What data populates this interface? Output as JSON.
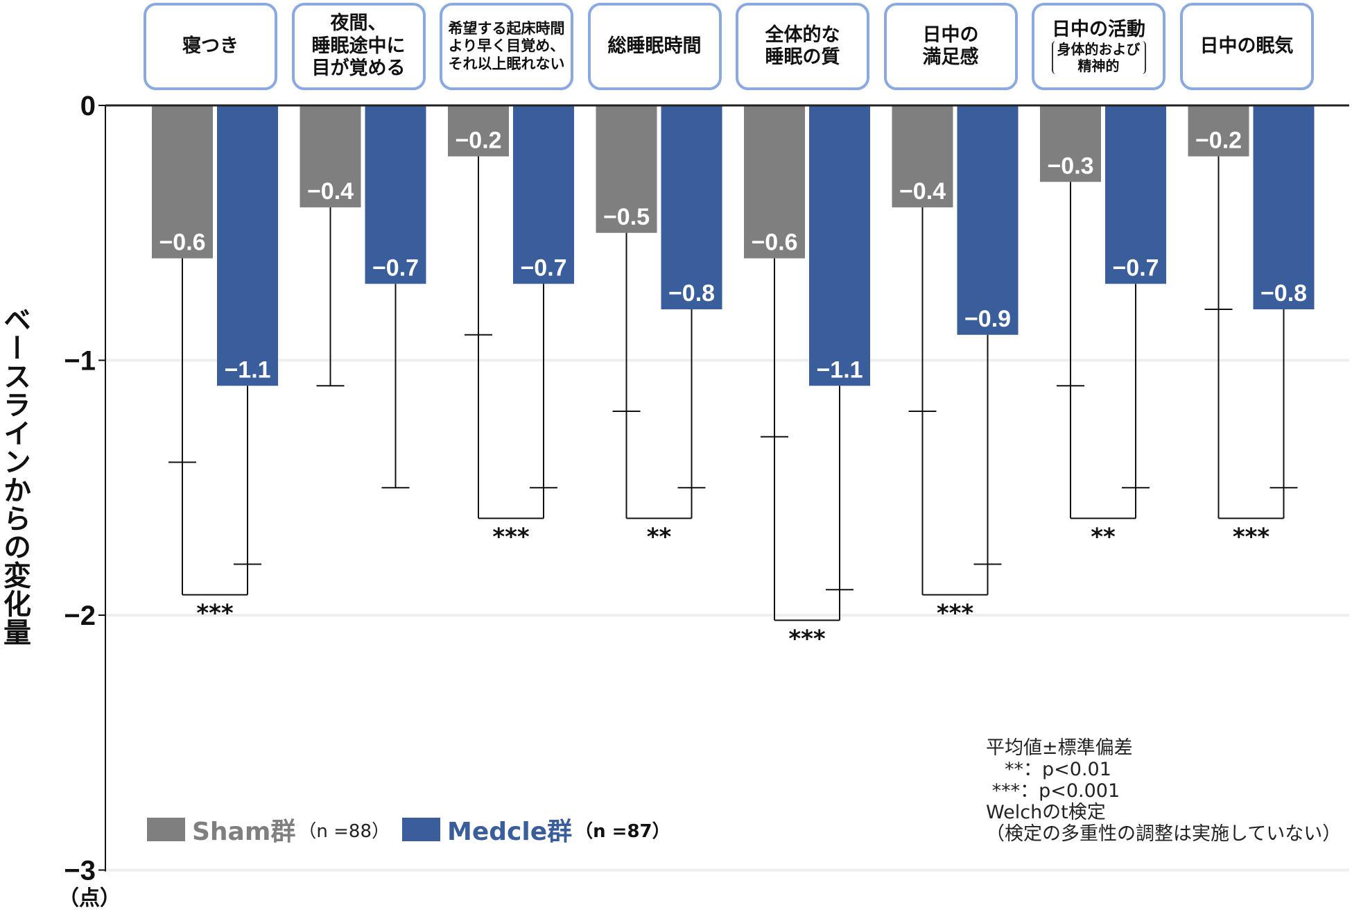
{
  "chart_data": {
    "type": "bar",
    "ylabel": "ベースラインからの変化量",
    "yunit": "（点）",
    "ylim": [
      -3,
      0
    ],
    "yticks": [
      "0",
      "−1",
      "−2",
      "−3"
    ],
    "grid": true,
    "categories": [
      {
        "lines": [
          "寝つき"
        ]
      },
      {
        "lines": [
          "夜間、",
          "睡眠途中に",
          "目が覚める"
        ]
      },
      {
        "lines": [
          "希望する起床時間",
          "より早く目覚め、",
          "それ以上眠れない"
        ],
        "small": true
      },
      {
        "lines": [
          "総睡眠時間"
        ]
      },
      {
        "lines": [
          "全体的な",
          "睡眠の質"
        ]
      },
      {
        "lines": [
          "日中の",
          "満足感"
        ]
      },
      {
        "lines": [
          "日中の活動"
        ],
        "sub": [
          "身体的および",
          "精神的"
        ]
      },
      {
        "lines": [
          "日中の眠気"
        ]
      }
    ],
    "series": [
      {
        "name": "Sham群",
        "n_label": "（n =88）",
        "color": "#7f7f7f",
        "values": [
          -0.6,
          -0.4,
          -0.2,
          -0.5,
          -0.6,
          -0.4,
          -0.3,
          -0.2
        ],
        "sd": [
          0.8,
          0.7,
          0.7,
          0.7,
          0.7,
          0.8,
          0.8,
          0.6
        ],
        "labels": [
          "−0.6",
          "−0.4",
          "−0.2",
          "−0.5",
          "−0.6",
          "−0.4",
          "−0.3",
          "−0.2"
        ]
      },
      {
        "name": "Medcle群",
        "n_label": "（n =87）",
        "color": "#3a5d9c",
        "values": [
          -1.1,
          -0.7,
          -0.7,
          -0.8,
          -1.1,
          -0.9,
          -0.7,
          -0.8
        ],
        "sd": [
          0.7,
          0.8,
          0.8,
          0.7,
          0.8,
          0.9,
          0.8,
          0.7
        ],
        "labels": [
          "−1.1",
          "−0.7",
          "−0.7",
          "−0.8",
          "−1.1",
          "−0.9",
          "−0.7",
          "−0.8"
        ]
      }
    ],
    "significance": [
      "***",
      "",
      "***",
      "**",
      "***",
      "***",
      "**",
      "***"
    ],
    "notes": [
      "平均値±標準偏差",
      "　**：p<0.01",
      " ***：p<0.001",
      "Welchのt検定",
      "（検定の多重性の調整は実施していない）"
    ],
    "legend_placement": "bottom-left"
  }
}
